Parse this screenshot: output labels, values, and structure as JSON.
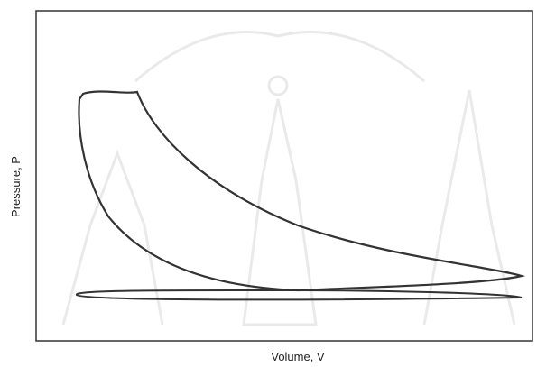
{
  "axes": {
    "x_label": "Volume, V",
    "y_label": "Pressure, P"
  }
}
